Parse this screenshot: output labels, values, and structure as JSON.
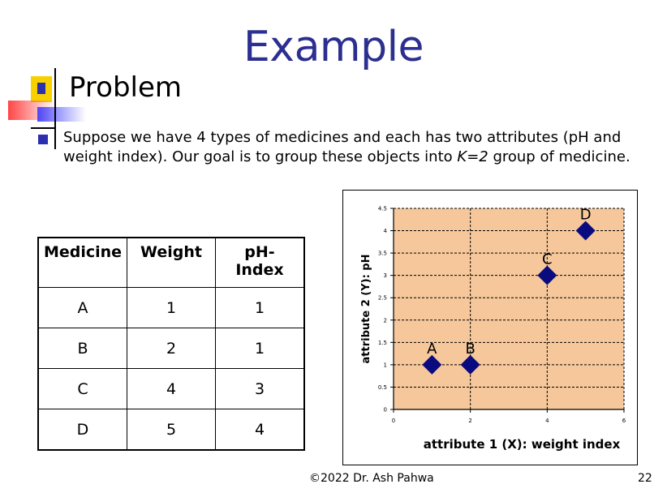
{
  "slide": {
    "title": "Example",
    "heading": "Problem",
    "paragraph_parts": [
      "Suppose we have 4 types of medicines and each has two attributes (pH and weight index). Our goal is to group these objects into ",
      "K=2",
      " group of medicine."
    ],
    "footer": "©2022 Dr. Ash Pahwa",
    "page_number": "22"
  },
  "table": {
    "headers": [
      "Medicine",
      "Weight",
      "pH-\nIndex"
    ],
    "rows": [
      [
        "A",
        "1",
        "1"
      ],
      [
        "B",
        "2",
        "1"
      ],
      [
        "C",
        "4",
        "3"
      ],
      [
        "D",
        "5",
        "4"
      ]
    ]
  },
  "colors": {
    "title": "#2b2f8f",
    "plot_background": "#f5c79a",
    "marker": "#0b0b80"
  },
  "chart_data": {
    "type": "scatter",
    "xlabel": "attribute 1 (X): weight index",
    "ylabel": "attribute 2 (Y): pH",
    "xlim": [
      0,
      6
    ],
    "ylim": [
      0,
      4.5
    ],
    "xticks": [
      "0",
      "2",
      "4",
      "6"
    ],
    "yticks": [
      "0",
      "0.5",
      "1",
      "1.5",
      "2",
      "2.5",
      "3",
      "3.5",
      "4",
      "4.5"
    ],
    "grid": true,
    "points": [
      {
        "label": "A",
        "x": 1,
        "y": 1
      },
      {
        "label": "B",
        "x": 2,
        "y": 1
      },
      {
        "label": "C",
        "x": 4,
        "y": 3
      },
      {
        "label": "D",
        "x": 5,
        "y": 4
      }
    ]
  }
}
